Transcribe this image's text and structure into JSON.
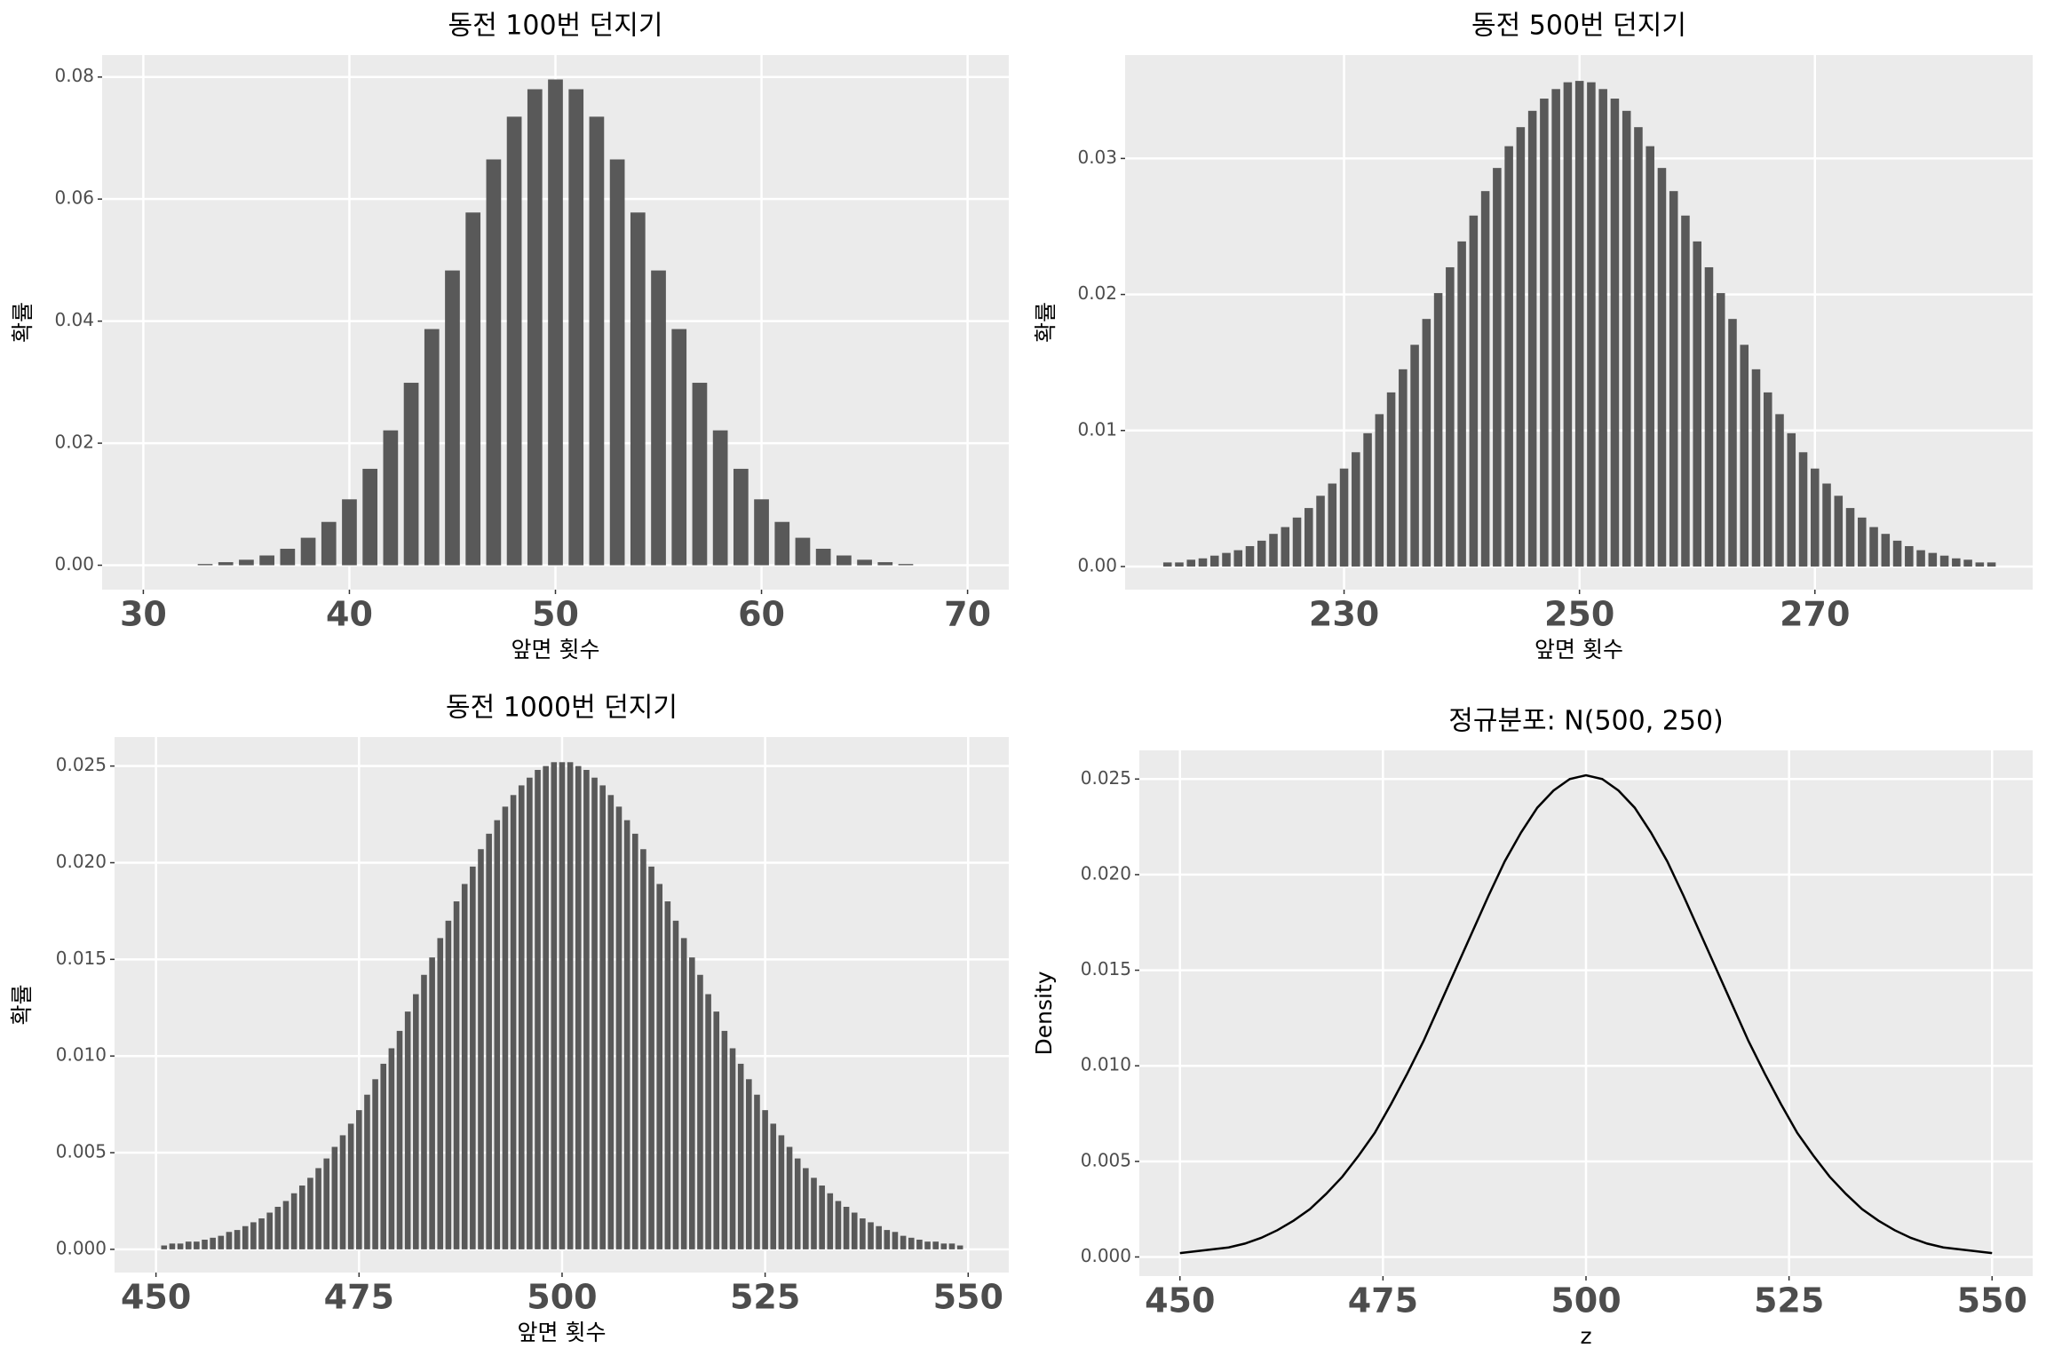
{
  "chart_data": [
    {
      "type": "bar",
      "title": "동전 100번 던지기",
      "x_label": "앞면 횟수",
      "y_label": "확률",
      "color": "#595959",
      "x": [
        33,
        34,
        35,
        36,
        37,
        38,
        39,
        40,
        41,
        42,
        43,
        44,
        45,
        46,
        47,
        48,
        49,
        50,
        51,
        52,
        53,
        54,
        55,
        56,
        57,
        58,
        59,
        60,
        61,
        62,
        63,
        64,
        65,
        66,
        67
      ],
      "values": [
        0.0002,
        0.0005,
        0.0009,
        0.0016,
        0.0027,
        0.0045,
        0.0071,
        0.0108,
        0.0158,
        0.0221,
        0.0299,
        0.0387,
        0.0483,
        0.0578,
        0.0665,
        0.0735,
        0.078,
        0.0796,
        0.078,
        0.0735,
        0.0665,
        0.0578,
        0.0483,
        0.0387,
        0.0299,
        0.0221,
        0.0158,
        0.0108,
        0.0071,
        0.0045,
        0.0027,
        0.0016,
        0.0009,
        0.0005,
        0.0002
      ],
      "xlim": [
        28,
        72
      ],
      "ylim": [
        -0.004,
        0.0836
      ],
      "xticks": [
        30,
        40,
        50,
        60,
        70
      ],
      "yticks": [
        {
          "value": 0,
          "label": "0.00"
        },
        {
          "value": 0.02,
          "label": "0.02"
        },
        {
          "value": 0.04,
          "label": "0.04"
        },
        {
          "value": 0.06,
          "label": "0.06"
        },
        {
          "value": 0.08,
          "label": "0.08"
        }
      ],
      "grid": true
    },
    {
      "type": "bar",
      "title": "동전 500번 던지기",
      "x_label": "앞면 횟수",
      "y_label": "확률",
      "color": "#595959",
      "x": [
        215,
        216,
        217,
        218,
        219,
        220,
        221,
        222,
        223,
        224,
        225,
        226,
        227,
        228,
        229,
        230,
        231,
        232,
        233,
        234,
        235,
        236,
        237,
        238,
        239,
        240,
        241,
        242,
        243,
        244,
        245,
        246,
        247,
        248,
        249,
        250,
        251,
        252,
        253,
        254,
        255,
        256,
        257,
        258,
        259,
        260,
        261,
        262,
        263,
        264,
        265,
        266,
        267,
        268,
        269,
        270,
        271,
        272,
        273,
        274,
        275,
        276,
        277,
        278,
        279,
        280,
        281,
        282,
        283,
        284,
        285
      ],
      "values": [
        0.0003,
        0.0003,
        0.0005,
        0.0006,
        0.0008,
        0.001,
        0.0012,
        0.0015,
        0.0019,
        0.0024,
        0.0029,
        0.0036,
        0.0043,
        0.0052,
        0.0061,
        0.0072,
        0.0084,
        0.0098,
        0.0112,
        0.0128,
        0.0145,
        0.0163,
        0.0182,
        0.0201,
        0.022,
        0.0239,
        0.0258,
        0.0276,
        0.0293,
        0.0309,
        0.0323,
        0.0335,
        0.0344,
        0.0351,
        0.0356,
        0.0357,
        0.0356,
        0.0351,
        0.0344,
        0.0335,
        0.0323,
        0.0309,
        0.0293,
        0.0276,
        0.0258,
        0.0239,
        0.022,
        0.0201,
        0.0182,
        0.0163,
        0.0145,
        0.0128,
        0.0112,
        0.0098,
        0.0084,
        0.0072,
        0.0061,
        0.0052,
        0.0043,
        0.0036,
        0.0029,
        0.0024,
        0.0019,
        0.0015,
        0.0012,
        0.001,
        0.0008,
        0.0006,
        0.0005,
        0.0003,
        0.0003
      ],
      "xlim": [
        211.4,
        288.5
      ],
      "ylim": [
        -0.0017,
        0.0376
      ],
      "xticks": [
        230,
        250,
        270
      ],
      "yticks": [
        {
          "value": 0,
          "label": "0.00"
        },
        {
          "value": 0.01,
          "label": "0.01"
        },
        {
          "value": 0.02,
          "label": "0.02"
        },
        {
          "value": 0.03,
          "label": "0.03"
        }
      ],
      "grid": true
    },
    {
      "type": "bar",
      "title": "동전 1000번 던지기",
      "x_label": "앞면 횟수",
      "y_label": "확률",
      "color": "#595959",
      "x": [
        451,
        452,
        453,
        454,
        455,
        456,
        457,
        458,
        459,
        460,
        461,
        462,
        463,
        464,
        465,
        466,
        467,
        468,
        469,
        470,
        471,
        472,
        473,
        474,
        475,
        476,
        477,
        478,
        479,
        480,
        481,
        482,
        483,
        484,
        485,
        486,
        487,
        488,
        489,
        490,
        491,
        492,
        493,
        494,
        495,
        496,
        497,
        498,
        499,
        500,
        501,
        502,
        503,
        504,
        505,
        506,
        507,
        508,
        509,
        510,
        511,
        512,
        513,
        514,
        515,
        516,
        517,
        518,
        519,
        520,
        521,
        522,
        523,
        524,
        525,
        526,
        527,
        528,
        529,
        530,
        531,
        532,
        533,
        534,
        535,
        536,
        537,
        538,
        539,
        540,
        541,
        542,
        543,
        544,
        545,
        546,
        547,
        548,
        549
      ],
      "values": [
        0.0002,
        0.0003,
        0.0003,
        0.0004,
        0.0004,
        0.0005,
        0.0006,
        0.0007,
        0.0009,
        0.001,
        0.0012,
        0.0014,
        0.0016,
        0.0019,
        0.0022,
        0.0025,
        0.0029,
        0.0033,
        0.0037,
        0.0042,
        0.0047,
        0.0053,
        0.0059,
        0.0065,
        0.0072,
        0.008,
        0.0088,
        0.0096,
        0.0104,
        0.0113,
        0.0123,
        0.0132,
        0.0142,
        0.0151,
        0.0161,
        0.017,
        0.018,
        0.0189,
        0.0198,
        0.0207,
        0.0215,
        0.0222,
        0.0229,
        0.0235,
        0.024,
        0.0244,
        0.0248,
        0.025,
        0.0252,
        0.0252,
        0.0252,
        0.025,
        0.0248,
        0.0244,
        0.024,
        0.0235,
        0.0229,
        0.0222,
        0.0215,
        0.0207,
        0.0198,
        0.0189,
        0.018,
        0.017,
        0.0161,
        0.0151,
        0.0142,
        0.0132,
        0.0123,
        0.0113,
        0.0104,
        0.0096,
        0.0088,
        0.008,
        0.0072,
        0.0065,
        0.0059,
        0.0053,
        0.0047,
        0.0042,
        0.0037,
        0.0033,
        0.0029,
        0.0025,
        0.0022,
        0.0019,
        0.0016,
        0.0014,
        0.0012,
        0.001,
        0.0009,
        0.0007,
        0.0006,
        0.0005,
        0.0004,
        0.0004,
        0.0003,
        0.0003,
        0.0002
      ],
      "xlim": [
        444.9,
        555
      ],
      "ylim": [
        -0.0012,
        0.0265
      ],
      "xticks": [
        450,
        475,
        500,
        525,
        550
      ],
      "yticks": [
        {
          "value": 0,
          "label": "0.000"
        },
        {
          "value": 0.005,
          "label": "0.005"
        },
        {
          "value": 0.01,
          "label": "0.010"
        },
        {
          "value": 0.015,
          "label": "0.015"
        },
        {
          "value": 0.02,
          "label": "0.020"
        },
        {
          "value": 0.025,
          "label": "0.025"
        }
      ],
      "grid": true
    },
    {
      "type": "line",
      "title": "정규분포: N(500, 250)",
      "x_label": "z",
      "y_label": "Density",
      "color": "#000000",
      "x": [
        450,
        452,
        454,
        456,
        458,
        460,
        462,
        464,
        466,
        468,
        470,
        472,
        474,
        476,
        478,
        480,
        482,
        484,
        486,
        488,
        490,
        492,
        494,
        496,
        498,
        500,
        502,
        504,
        506,
        508,
        510,
        512,
        514,
        516,
        518,
        520,
        522,
        524,
        526,
        528,
        530,
        532,
        534,
        536,
        538,
        540,
        542,
        544,
        546,
        548,
        550
      ],
      "values": [
        0.0002,
        0.0003,
        0.0004,
        0.0005,
        0.0007,
        0.001,
        0.0014,
        0.0019,
        0.0025,
        0.0033,
        0.0042,
        0.0053,
        0.0065,
        0.008,
        0.0096,
        0.0113,
        0.0132,
        0.0151,
        0.017,
        0.0189,
        0.0207,
        0.0222,
        0.0235,
        0.0244,
        0.025,
        0.0252,
        0.025,
        0.0244,
        0.0235,
        0.0222,
        0.0207,
        0.0189,
        0.017,
        0.0151,
        0.0132,
        0.0113,
        0.0096,
        0.008,
        0.0065,
        0.0053,
        0.0042,
        0.0033,
        0.0025,
        0.0019,
        0.0014,
        0.001,
        0.0007,
        0.0005,
        0.0004,
        0.0003,
        0.0002
      ],
      "xlim": [
        445,
        555
      ],
      "ylim": [
        -0.001,
        0.0265
      ],
      "xticks": [
        450,
        475,
        500,
        525,
        550
      ],
      "yticks": [
        {
          "value": 0,
          "label": "0.000"
        },
        {
          "value": 0.005,
          "label": "0.005"
        },
        {
          "value": 0.01,
          "label": "0.010"
        },
        {
          "value": 0.015,
          "label": "0.015"
        },
        {
          "value": 0.02,
          "label": "0.020"
        },
        {
          "value": 0.025,
          "label": "0.025"
        }
      ],
      "grid": true
    }
  ]
}
